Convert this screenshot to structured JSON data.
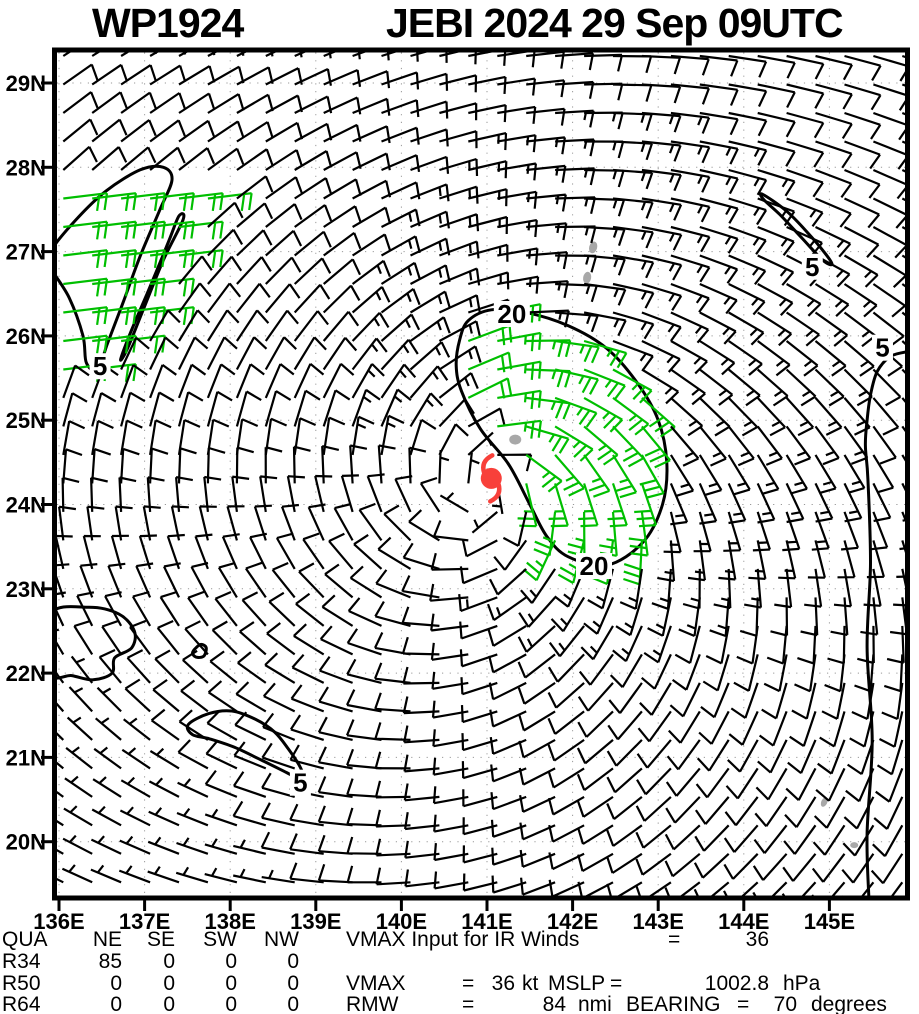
{
  "title": {
    "storm_id": "WP1924",
    "storm_info": "JEBI 2024 29 Sep 09UTC"
  },
  "axes": {
    "x_ticks": [
      "136E",
      "137E",
      "138E",
      "139E",
      "140E",
      "141E",
      "142E",
      "143E",
      "144E",
      "145E"
    ],
    "y_ticks": [
      "29N",
      "28N",
      "27N",
      "26N",
      "25N",
      "24N",
      "23N",
      "22N",
      "21N",
      "20N"
    ],
    "x_range_deg": [
      135.95,
      145.92
    ],
    "y_range_deg": [
      19.33,
      29.39
    ],
    "grid": "dotted"
  },
  "footer": {
    "line1": {
      "row_label": "QUA",
      "cols": [
        "NE",
        "SE",
        "SW",
        "NW"
      ],
      "note_label": "VMAX Input for IR Winds",
      "equals": "=",
      "note_value": "36"
    },
    "line2": {
      "row_label": "R34",
      "cols": [
        "85",
        "0",
        "0",
        "0"
      ]
    },
    "line3": {
      "row_label": "R50",
      "cols": [
        "0",
        "0",
        "0",
        "0"
      ],
      "tokens": [
        "VMAX",
        "=",
        "36",
        "kt",
        "MSLP",
        "=",
        "1002.8",
        "hPa"
      ]
    },
    "line4": {
      "row_label": "R64",
      "cols": [
        "0",
        "0",
        "0",
        "0"
      ],
      "tokens": [
        "RMW",
        "=",
        "84",
        "nmi",
        "BEARING",
        "=",
        "70",
        "degrees"
      ]
    }
  },
  "chart_data": {
    "type": "wind_barb_map",
    "title": "WP1924 JEBI 2024 29 Sep 09UTC",
    "cyclone_center": {
      "lon": 141.05,
      "lat": 24.31,
      "symbol": "tropical-storm"
    },
    "stats": {
      "vmax_input_kt": 36,
      "vmax_kt": 36,
      "mslp_hpa": 1002.8,
      "rmw_nmi": 84,
      "bearing_deg": 70,
      "r34_nmi": {
        "NE": 85,
        "SE": 0,
        "SW": 0,
        "NW": 0
      },
      "r50_nmi": {
        "NE": 0,
        "SE": 0,
        "SW": 0,
        "NW": 0
      },
      "r64_nmi": {
        "NE": 0,
        "SE": 0,
        "SW": 0,
        "NW": 0
      }
    },
    "wind_model": {
      "center": [
        141.05,
        24.31
      ],
      "grid_start": [
        136.05,
        29.32
      ],
      "grid_step_deg": 0.338,
      "cols": 30,
      "rows": 30,
      "rotation": "counterclockwise",
      "base_speed_kt": 16,
      "rmw_deg": 1.3,
      "inflow_deg": 15,
      "asym_amp": 0.25,
      "asym_dir_deg": 45,
      "shear_westerly_kt": 7,
      "green_zone_speed_kt": 20,
      "green_zone_nw": {
        "lat_min": 25.3,
        "lat_max": 27.82,
        "lon_edge_base": 136.5,
        "lon_edge_slope": 0.62,
        "staff_dir": "from-east"
      }
    },
    "isotachs": [
      {
        "label": "20",
        "closed": true,
        "label_points": [
          [
            141.29,
            26.26
          ],
          [
            142.25,
            23.27
          ]
        ],
        "points": [
          [
            140.68,
            25.95
          ],
          [
            140.78,
            26.18
          ],
          [
            141.05,
            26.31
          ],
          [
            141.45,
            26.28
          ],
          [
            141.95,
            26.12
          ],
          [
            142.4,
            25.85
          ],
          [
            142.75,
            25.45
          ],
          [
            143.0,
            25.0
          ],
          [
            143.1,
            24.5
          ],
          [
            143.05,
            24.0
          ],
          [
            142.82,
            23.55
          ],
          [
            142.4,
            23.28
          ],
          [
            141.95,
            23.38
          ],
          [
            141.7,
            23.62
          ],
          [
            141.5,
            24.0
          ],
          [
            141.25,
            24.48
          ],
          [
            140.92,
            24.9
          ],
          [
            140.7,
            25.35
          ],
          [
            140.64,
            25.65
          ]
        ]
      },
      {
        "label": "5",
        "closed": true,
        "label_points": [
          [
            136.48,
            25.64
          ]
        ],
        "points": [
          [
            135.9,
            27.0
          ],
          [
            136.2,
            27.38
          ],
          [
            136.55,
            27.72
          ],
          [
            136.95,
            27.97
          ],
          [
            137.22,
            28.0
          ],
          [
            137.32,
            27.85
          ],
          [
            137.18,
            27.5
          ],
          [
            136.95,
            26.95
          ],
          [
            136.75,
            26.4
          ],
          [
            136.57,
            25.92
          ],
          [
            136.45,
            25.6
          ],
          [
            136.32,
            25.68
          ],
          [
            136.28,
            26.0
          ],
          [
            136.12,
            26.45
          ],
          [
            135.9,
            26.82
          ]
        ]
      },
      {
        "label": "",
        "closed": true,
        "label_points": [],
        "points": [
          [
            137.45,
            27.38
          ],
          [
            137.22,
            26.9
          ],
          [
            136.98,
            26.3
          ],
          [
            136.8,
            25.85
          ],
          [
            136.72,
            25.72
          ],
          [
            136.84,
            26.05
          ],
          [
            137.05,
            26.55
          ],
          [
            137.28,
            27.12
          ],
          [
            137.4,
            27.42
          ]
        ]
      },
      {
        "label": "5",
        "closed": true,
        "label_points": [
          [
            144.8,
            26.82
          ]
        ],
        "points": [
          [
            144.22,
            27.68
          ],
          [
            144.5,
            27.48
          ],
          [
            144.75,
            27.22
          ],
          [
            144.95,
            26.98
          ],
          [
            145.03,
            26.85
          ],
          [
            144.92,
            26.9
          ],
          [
            144.68,
            27.16
          ],
          [
            144.42,
            27.44
          ],
          [
            144.23,
            27.62
          ]
        ]
      },
      {
        "label": "5",
        "closed": false,
        "label_points": [
          [
            145.62,
            25.86
          ]
        ],
        "points": [
          [
            145.95,
            25.82
          ],
          [
            145.72,
            25.76
          ],
          [
            145.56,
            25.58
          ],
          [
            145.48,
            25.3
          ],
          [
            145.44,
            25.0
          ],
          [
            145.42,
            24.7
          ],
          [
            145.45,
            24.3
          ],
          [
            145.48,
            23.3
          ],
          [
            145.44,
            22.3
          ],
          [
            145.5,
            21.2
          ],
          [
            145.44,
            20.1
          ],
          [
            145.46,
            19.35
          ]
        ]
      },
      {
        "label": "",
        "closed": true,
        "label_points": [],
        "points": [
          [
            135.9,
            22.7
          ],
          [
            136.35,
            22.78
          ],
          [
            136.7,
            22.7
          ],
          [
            136.88,
            22.5
          ],
          [
            136.85,
            22.3
          ],
          [
            136.65,
            22.18
          ],
          [
            136.62,
            22.0
          ],
          [
            136.4,
            21.92
          ],
          [
            136.15,
            21.97
          ],
          [
            135.9,
            22.0
          ]
        ]
      },
      {
        "label": "",
        "closed": true,
        "label_points": [],
        "points": [
          [
            137.6,
            22.3
          ],
          [
            137.66,
            22.34
          ],
          [
            137.72,
            22.3
          ],
          [
            137.69,
            22.2
          ],
          [
            137.6,
            22.19
          ],
          [
            137.56,
            22.24
          ]
        ]
      },
      {
        "label": "5",
        "closed": true,
        "label_points": [
          [
            138.82,
            20.7
          ]
        ],
        "points": [
          [
            137.51,
            21.39
          ],
          [
            137.75,
            21.52
          ],
          [
            138.02,
            21.55
          ],
          [
            138.3,
            21.45
          ],
          [
            138.52,
            21.3
          ],
          [
            138.68,
            21.1
          ],
          [
            138.82,
            20.88
          ],
          [
            138.86,
            20.72
          ],
          [
            138.66,
            20.82
          ],
          [
            138.36,
            20.97
          ],
          [
            138.05,
            21.12
          ],
          [
            137.76,
            21.22
          ],
          [
            137.56,
            21.27
          ]
        ]
      }
    ],
    "islands": [
      {
        "lon": 142.24,
        "lat": 27.05,
        "rx": 4,
        "ry": 6,
        "rot": 15
      },
      {
        "lon": 142.17,
        "lat": 26.69,
        "rx": 4,
        "ry": 6,
        "rot": 10
      },
      {
        "lon": 141.33,
        "lat": 24.77,
        "rx": 6,
        "ry": 5,
        "rot": 0
      },
      {
        "lon": 144.94,
        "lat": 20.47,
        "rx": 3,
        "ry": 5,
        "rot": 25
      },
      {
        "lon": 145.29,
        "lat": 19.96,
        "rx": 4,
        "ry": 3,
        "rot": 0
      }
    ],
    "palette": {
      "barb_black": "#000000",
      "barb_green": "#00bf00",
      "contour": "#000000",
      "land": "#a8a8a8",
      "grid": "#999999",
      "cyclone": "#f8403a"
    }
  }
}
